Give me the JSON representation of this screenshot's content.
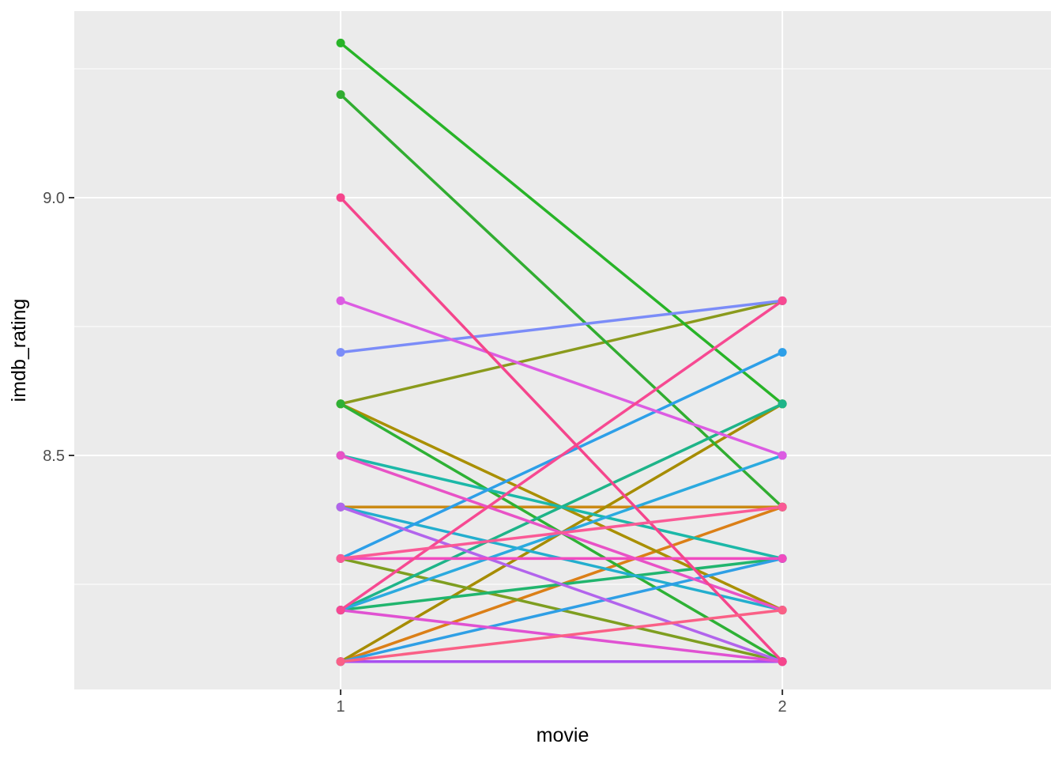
{
  "figure": {
    "title": ""
  },
  "panel": {
    "background": "#EBEBEB",
    "grid_color": "#FFFFFF",
    "tick_mark_color": "#333333",
    "tick_label_color": "#4D4D4D",
    "axis_title_color": "#000000"
  },
  "chart_data": {
    "type": "line",
    "title": "",
    "xlabel": "movie",
    "ylabel": "imdb_rating",
    "x": [
      1,
      2
    ],
    "x_tick_labels": [
      "1",
      "2"
    ],
    "y_ticks": [
      {
        "value": 8.5,
        "label": "8.5"
      },
      {
        "value": 9.0,
        "label": "9.0"
      }
    ],
    "y_minor_ticks": [
      8.25,
      8.75,
      9.25
    ],
    "xlim": [
      0.397,
      2.608
    ],
    "ylim": [
      8.046,
      9.362
    ],
    "grid": true,
    "legend_position": "none",
    "marker": "point",
    "series": [
      {
        "color": "#CB8A15",
        "values": [
          8.4,
          8.4
        ]
      },
      {
        "color": "#DB7F17",
        "values": [
          8.1,
          8.4
        ]
      },
      {
        "color": "#A98F00",
        "values": [
          8.6,
          8.2
        ]
      },
      {
        "color": "#A68C00",
        "values": [
          8.1,
          8.6
        ]
      },
      {
        "color": "#7E9E20",
        "values": [
          8.3,
          8.1
        ]
      },
      {
        "color": "#8A9A1C",
        "values": [
          8.6,
          8.8
        ]
      },
      {
        "color": "#31AD31",
        "values": [
          9.2,
          8.4
        ]
      },
      {
        "color": "#28B428",
        "values": [
          9.3,
          8.6
        ]
      },
      {
        "color": "#2EB135",
        "values": [
          8.6,
          8.1
        ]
      },
      {
        "color": "#21B56E",
        "values": [
          8.2,
          8.3
        ]
      },
      {
        "color": "#1EB489",
        "values": [
          8.2,
          8.6
        ]
      },
      {
        "color": "#1CB8A8",
        "values": [
          8.5,
          8.3
        ]
      },
      {
        "color": "#23AECE",
        "values": [
          8.4,
          8.2
        ]
      },
      {
        "color": "#2BAADF",
        "values": [
          8.2,
          8.5
        ]
      },
      {
        "color": "#2F9FE5",
        "values": [
          8.1,
          8.3
        ]
      },
      {
        "color": "#2D9FE8",
        "values": [
          8.3,
          8.7
        ]
      },
      {
        "color": "#7B8CF8",
        "values": [
          8.7,
          8.8
        ]
      },
      {
        "color": "#B264EC",
        "values": [
          8.4,
          8.1
        ]
      },
      {
        "color": "#A84FF0",
        "values": [
          8.1,
          8.1
        ]
      },
      {
        "color": "#DC5CE2",
        "values": [
          8.8,
          8.5
        ]
      },
      {
        "color": "#E052D2",
        "values": [
          8.2,
          8.1
        ]
      },
      {
        "color": "#E852C6",
        "values": [
          8.5,
          8.2
        ]
      },
      {
        "color": "#F04BC0",
        "values": [
          8.3,
          8.3
        ]
      },
      {
        "color": "#F74992",
        "values": [
          8.2,
          8.8
        ]
      },
      {
        "color": "#F5458C",
        "values": [
          9.0,
          8.1
        ]
      },
      {
        "color": "#FA5A96",
        "values": [
          8.3,
          8.4
        ]
      },
      {
        "color": "#FA6086",
        "values": [
          8.1,
          8.2
        ]
      }
    ]
  }
}
